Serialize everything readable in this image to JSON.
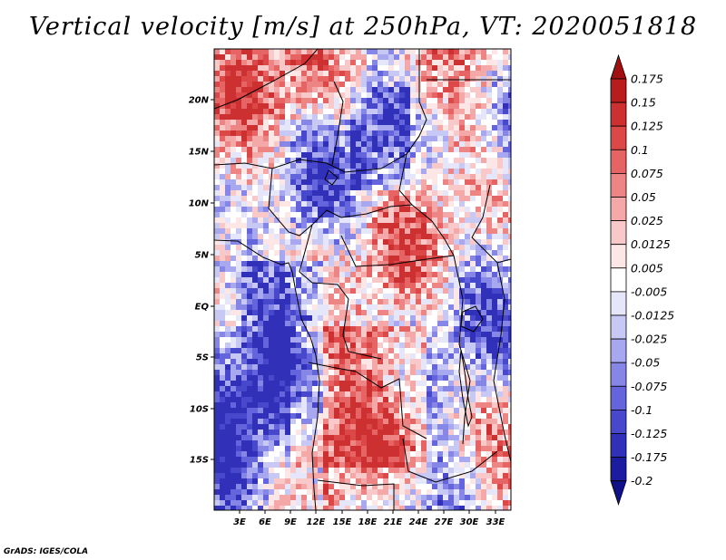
{
  "title": "Vertical velocity [m/s] at 250hPa, VT: 2020051818",
  "credit": "GrADS: IGES/COLA",
  "map": {
    "lat_labels": [
      "20N",
      "15N",
      "10N",
      "5N",
      "EQ",
      "5S",
      "10S",
      "15S"
    ],
    "lon_labels": [
      "3E",
      "6E",
      "9E",
      "12E",
      "15E",
      "18E",
      "21E",
      "24E",
      "27E",
      "30E",
      "33E"
    ]
  },
  "colorbar": {
    "labels": [
      "0.175",
      "0.15",
      "0.125",
      "0.1",
      "0.075",
      "0.05",
      "0.025",
      "0.0125",
      "0.005",
      "-0.005",
      "-0.0125",
      "-0.025",
      "-0.05",
      "-0.075",
      "-0.1",
      "-0.125",
      "-0.175",
      "-0.2"
    ],
    "colors": [
      "#a01010",
      "#b81c1c",
      "#cc3030",
      "#dc4848",
      "#e66464",
      "#ee8585",
      "#f5a8a8",
      "#f9c8c8",
      "#fde6e6",
      "#ffffff",
      "#e6e6fa",
      "#c8c8f5",
      "#a8a8f0",
      "#8686e6",
      "#6464dc",
      "#4848cc",
      "#3030b8",
      "#1c1ca0",
      "#101088"
    ]
  }
}
